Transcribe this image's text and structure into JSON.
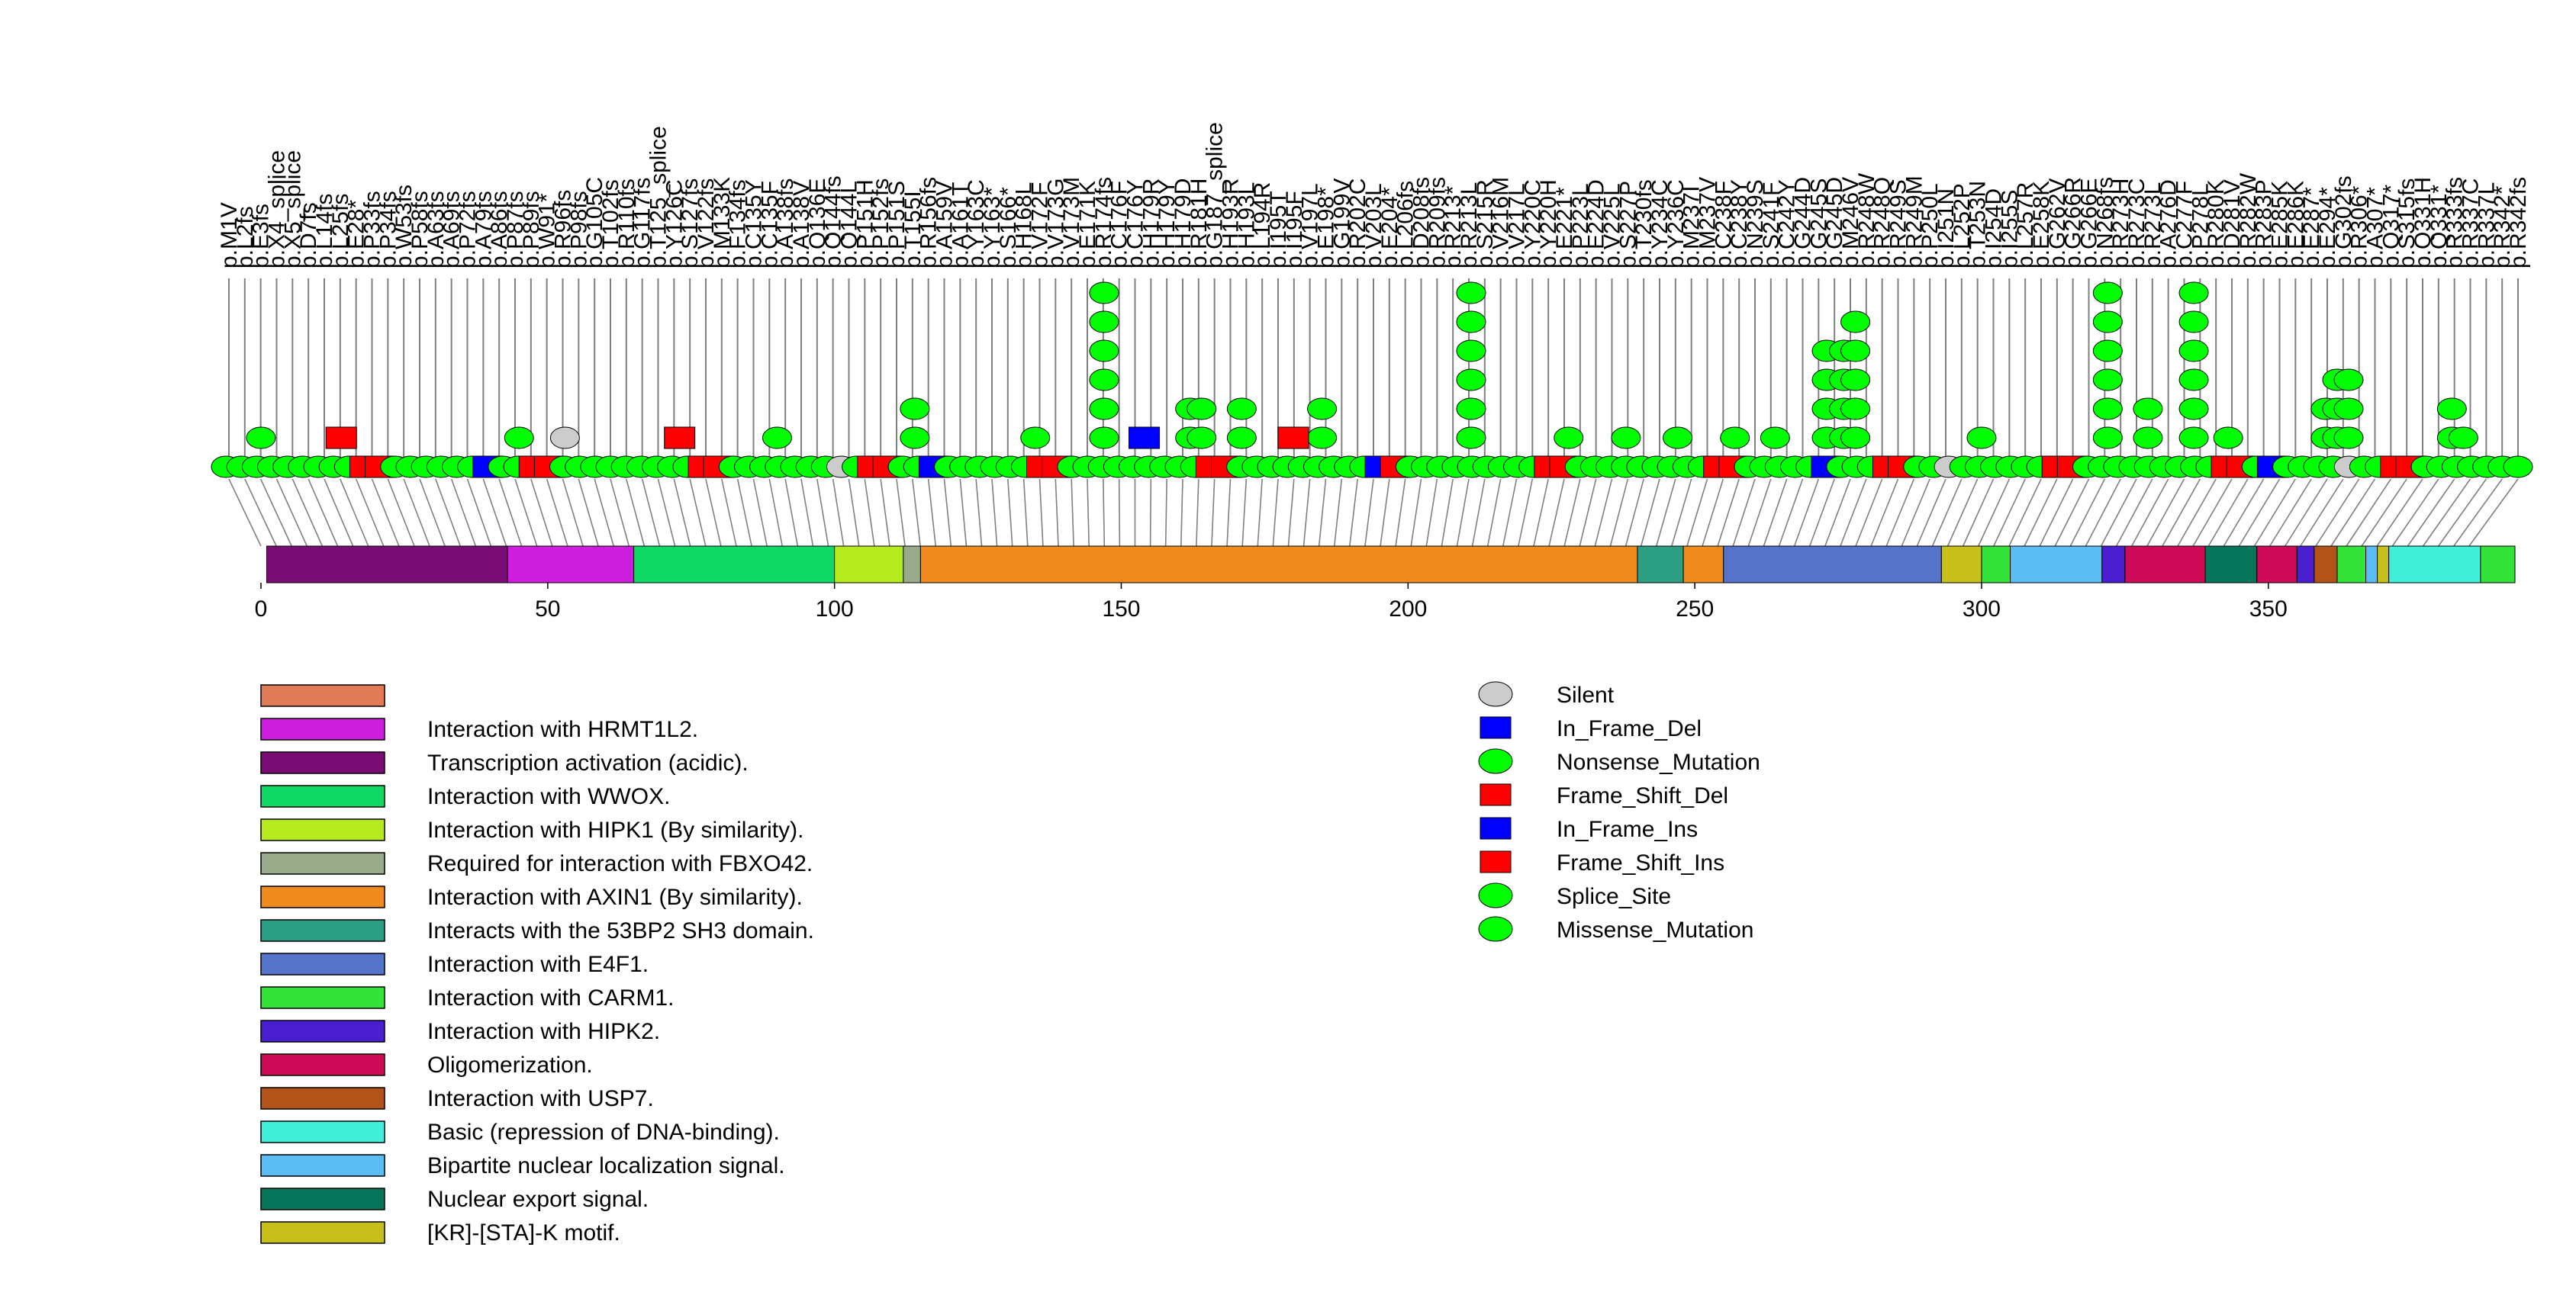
{
  "chart_data": {
    "type": "lollipop",
    "title": "",
    "xlabel": "",
    "ylabel": "",
    "xlim": [
      0,
      393
    ],
    "x_ticks": [
      0,
      50,
      100,
      150,
      200,
      250,
      300,
      350
    ],
    "x_tick_labels": [
      "0",
      "50",
      "100",
      "150",
      "200",
      "250",
      "300",
      "350"
    ],
    "colors": {
      "nonsense": "#00ff00",
      "frameshift": "#ff0000",
      "inframe": "#0000ff",
      "silent": "#cccccc",
      "stem": "#808080",
      "outline": "#000000"
    },
    "domains": [
      {
        "name": "Transcription activation (acidic).",
        "start": 1,
        "end": 43,
        "color": "#7a0d73"
      },
      {
        "name": "Interaction with HRMT1L2.",
        "start": 43,
        "end": 65,
        "color": "#cc1fdd"
      },
      {
        "name": "Interaction with WWOX.",
        "start": 65,
        "end": 100,
        "color": "#0fd864"
      },
      {
        "name": "Interaction with HIPK1 (By similarity).",
        "start": 100,
        "end": 112,
        "color": "#b6ea1e"
      },
      {
        "name": "Required for interaction with FBXO42.",
        "start": 112,
        "end": 115,
        "color": "#9aab8b"
      },
      {
        "name": "Interaction with AXIN1 (By similarity).",
        "start": 115,
        "end": 240,
        "color": "#ee8a1e"
      },
      {
        "name": "Interacts with the 53BP2 SH3 domain.",
        "start": 240,
        "end": 248,
        "color": "#2a9f83"
      },
      {
        "name": "",
        "start": 248,
        "end": 255,
        "color": "#ee8a1e"
      },
      {
        "name": "Interaction with E4F1.",
        "start": 255,
        "end": 293,
        "color": "#5573c8"
      },
      {
        "name": "[KR]-[STA]-K motif.",
        "start": 293,
        "end": 300,
        "color": "#c8c01a"
      },
      {
        "name": "Interaction with CARM1.",
        "start": 300,
        "end": 305,
        "color": "#33e33a"
      },
      {
        "name": "Bipartite nuclear localization signal.",
        "start": 305,
        "end": 321,
        "color": "#5bbdf3"
      },
      {
        "name": "Interaction with HIPK2.",
        "start": 321,
        "end": 325,
        "color": "#4a1fd0"
      },
      {
        "name": "Oligomerization.",
        "start": 325,
        "end": 339,
        "color": "#cc0a55"
      },
      {
        "name": "Nuclear export signal.",
        "start": 339,
        "end": 348,
        "color": "#067559"
      },
      {
        "name": "Oligomerization.",
        "start": 348,
        "end": 355,
        "color": "#cc0a55"
      },
      {
        "name": "Interaction with HIPK2.",
        "start": 355,
        "end": 358,
        "color": "#4a1fd0"
      },
      {
        "name": "Interaction with USP7.",
        "start": 358,
        "end": 362,
        "color": "#b25419"
      },
      {
        "name": "Interaction with CARM1.",
        "start": 362,
        "end": 367,
        "color": "#33e33a"
      },
      {
        "name": "",
        "start": 367,
        "end": 369,
        "color": "#5bbdf3"
      },
      {
        "name": "[KR]-[STA]-K motif.",
        "start": 369,
        "end": 371,
        "color": "#c8c01a"
      },
      {
        "name": "Basic (repression of DNA-binding).",
        "start": 371,
        "end": 393,
        "color": "#40f0d8"
      },
      {
        "name": "",
        "start": 387,
        "end": 393,
        "color": "#33e33a"
      }
    ],
    "labels": [
      "p.M1V",
      "p.L2fs",
      "p.E3fs",
      "p.X4_splice",
      "p.X5_splice",
      "p.D7fs",
      "p.L14fs",
      "p.L25fs",
      "p.E28*",
      "p.P33fs",
      "p.P34fs",
      "p.W53fs",
      "p.P58fs",
      "p.A63fs",
      "p.A69fs",
      "p.P72fs",
      "p.A79fs",
      "p.A86fs",
      "p.P87fs",
      "p.P89fs",
      "p.W91*",
      "p.R96fs",
      "p.P98fs",
      "p.G105C",
      "p.T102fs",
      "p.R110fs",
      "p.G117fs",
      "p.T125_splice",
      "p.Y126C",
      "p.S127fs",
      "p.V122fs",
      "p.M133K",
      "p.F134fs",
      "p.C135Y",
      "p.C135F",
      "p.A138fs",
      "p.A138V",
      "p.Q136E",
      "p.Q144fs",
      "p.Q144L",
      "p.P151H",
      "p.P152fs",
      "p.P151S",
      "p.T155I",
      "p.R156fs",
      "p.A159V",
      "p.A161T",
      "p.Y163C",
      "p.Y163*",
      "p.S166*",
      "p.H168L",
      "p.V172F",
      "p.V173G",
      "p.V173M",
      "p.E171K",
      "p.R174fs",
      "p.C176F",
      "p.C176Y",
      "p.H179R",
      "p.H179Y",
      "p.H179D",
      "p.R181H",
      "p.G187_splice",
      "p.H193R",
      "p.H193L",
      "p.L194R",
      "p.I195T",
      "p.I195F",
      "p.V197L",
      "p.E198*",
      "p.G199V",
      "p.R202C",
      "p.V203L",
      "p.E204*",
      "p.L206fs",
      "p.D208fs",
      "p.R209fs",
      "p.R213*",
      "p.R213L",
      "p.S215R",
      "p.V216M",
      "p.V217L",
      "p.Y220C",
      "p.Y220H",
      "p.E221*",
      "p.P223L",
      "p.E224D",
      "p.V225L",
      "p.S227P",
      "p.T230fs",
      "p.Y234C",
      "p.Y236C",
      "p.M237I",
      "p.M237V",
      "p.C238F",
      "p.C238Y",
      "p.N239S",
      "p.S241F",
      "p.C242Y",
      "p.G244D",
      "p.G245S",
      "p.G245D",
      "p.M246V",
      "p.R248W",
      "p.R248Q",
      "p.R249S",
      "p.R249M",
      "p.P250L",
      "p.I251N",
      "p.L252P",
      "p.T253N",
      "p.I254D",
      "p.I255S",
      "p.L257R",
      "p.E258K",
      "p.G262V",
      "p.G266R",
      "p.G266E",
      "p.N268fs",
      "p.R273H",
      "p.R273C",
      "p.R273L",
      "p.A276D",
      "p.C277F",
      "p.P278L",
      "p.R280K",
      "p.D281V",
      "p.R282W",
      "p.R283P",
      "p.E285K",
      "p.E286K",
      "p.E287*",
      "p.E294*",
      "p.G302fs",
      "p.R306*",
      "p.A307*",
      "p.Q317*",
      "p.S315fs",
      "p.Q331H",
      "p.Q331*",
      "p.R333fs",
      "p.R337C",
      "p.R337L",
      "p.R342*",
      "p.R342fs"
    ],
    "legend_domains": [
      {
        "label": "",
        "color": "#e07a57"
      },
      {
        "label": "Interaction with HRMT1L2.",
        "color": "#cc1fdd"
      },
      {
        "label": "Transcription activation (acidic).",
        "color": "#7a0d73"
      },
      {
        "label": "Interaction with WWOX.",
        "color": "#0fd864"
      },
      {
        "label": "Interaction with HIPK1 (By similarity).",
        "color": "#b6ea1e"
      },
      {
        "label": "Required for interaction with FBXO42.",
        "color": "#9aab8b"
      },
      {
        "label": "Interaction with AXIN1 (By similarity).",
        "color": "#ee8a1e"
      },
      {
        "label": "Interacts with the 53BP2 SH3 domain.",
        "color": "#2a9f83"
      },
      {
        "label": "Interaction with E4F1.",
        "color": "#5573c8"
      },
      {
        "label": "Interaction with CARM1.",
        "color": "#33e33a"
      },
      {
        "label": "Interaction with HIPK2.",
        "color": "#4a1fd0"
      },
      {
        "label": "Oligomerization.",
        "color": "#cc0a55"
      },
      {
        "label": "Interaction with USP7.",
        "color": "#b25419"
      },
      {
        "label": "Basic (repression of DNA-binding).",
        "color": "#40f0d8"
      },
      {
        "label": "Bipartite nuclear localization signal.",
        "color": "#5bbdf3"
      },
      {
        "label": "Nuclear export signal.",
        "color": "#067559"
      },
      {
        "label": "[KR]-[STA]-K motif.",
        "color": "#c8c01a"
      }
    ],
    "legend_mutations": [
      {
        "label": "Silent",
        "shape": "ellipse",
        "color": "#cccccc"
      },
      {
        "label": "In_Frame_Del",
        "shape": "rect",
        "color": "#0000ff"
      },
      {
        "label": "Nonsense_Mutation",
        "shape": "ellipse",
        "color": "#00ff00"
      },
      {
        "label": "Frame_Shift_Del",
        "shape": "rect",
        "color": "#ff0000"
      },
      {
        "label": "In_Frame_Ins",
        "shape": "rect",
        "color": "#0000ff"
      },
      {
        "label": "Frame_Shift_Ins",
        "shape": "rect",
        "color": "#ff0000"
      },
      {
        "label": "Splice_Site",
        "shape": "ellipse",
        "color": "#00ff00"
      },
      {
        "label": "Missense_Mutation",
        "shape": "ellipse",
        "color": "#00ff00"
      }
    ],
    "stacks": [
      {
        "pos": 147,
        "count": 6
      },
      {
        "pos": 211,
        "count": 6
      },
      {
        "pos": 238,
        "count": 1
      },
      {
        "pos": 273,
        "count": 4
      },
      {
        "pos": 276,
        "count": 4
      },
      {
        "pos": 278,
        "count": 5
      },
      {
        "pos": 322,
        "count": 6
      },
      {
        "pos": 337,
        "count": 6
      },
      {
        "pos": 114,
        "count": 2
      },
      {
        "pos": 162,
        "count": 2
      },
      {
        "pos": 164,
        "count": 2
      },
      {
        "pos": 171,
        "count": 2
      },
      {
        "pos": 185,
        "count": 2
      },
      {
        "pos": 329,
        "count": 2
      },
      {
        "pos": 360,
        "count": 2
      },
      {
        "pos": 362,
        "count": 3
      },
      {
        "pos": 364,
        "count": 3
      },
      {
        "pos": 382,
        "count": 2
      },
      {
        "pos": 0,
        "count": 1
      },
      {
        "pos": 45,
        "count": 1
      },
      {
        "pos": 90,
        "count": 1
      },
      {
        "pos": 135,
        "count": 1
      },
      {
        "pos": 228,
        "count": 1
      },
      {
        "pos": 247,
        "count": 1
      },
      {
        "pos": 257,
        "count": 1
      },
      {
        "pos": 264,
        "count": 1
      },
      {
        "pos": 300,
        "count": 1
      },
      {
        "pos": 343,
        "count": 1
      },
      {
        "pos": 384,
        "count": 1
      }
    ]
  }
}
